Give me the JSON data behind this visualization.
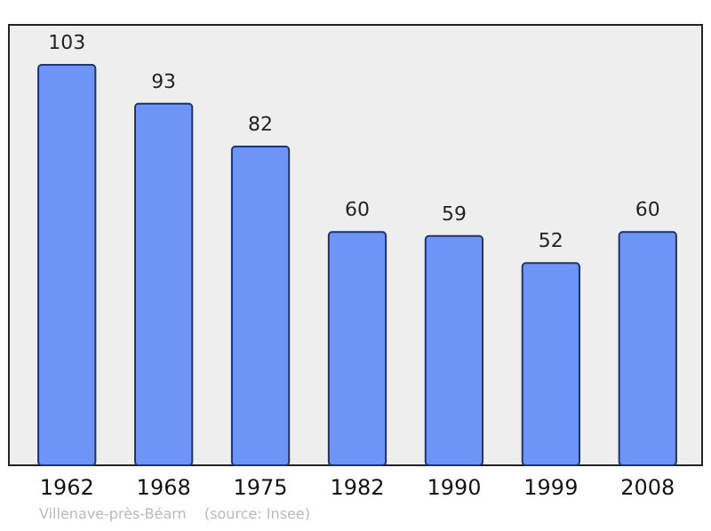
{
  "chart_data": {
    "type": "bar",
    "categories": [
      "1962",
      "1968",
      "1975",
      "1982",
      "1990",
      "1999",
      "2008"
    ],
    "values": [
      103,
      93,
      82,
      60,
      59,
      52,
      60
    ],
    "color": "#6f94f8",
    "data_labels": true,
    "grid": false,
    "annotations": [
      "Villenave-près-Béarn    (source: Insee)"
    ]
  }
}
